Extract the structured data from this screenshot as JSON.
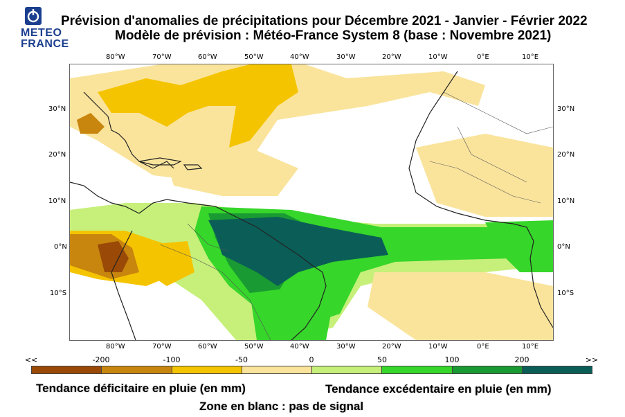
{
  "logo": {
    "line1": "METEO",
    "line2": "FRANCE"
  },
  "title": {
    "line1": "Prévision d'anomalies de précipitations pour Décembre 2021 - Janvier - Février 2022",
    "line2": "Modèle de prévision : Météo-France System 8   (base : Novembre 2021)"
  },
  "map": {
    "lon_labels": [
      "80°W",
      "70°W",
      "60°W",
      "50°W",
      "40°W",
      "30°W",
      "20°W",
      "10°W",
      "0°E",
      "10°E"
    ],
    "lat_labels": [
      "30°N",
      "20°N",
      "10°N",
      "0°N",
      "10°S"
    ]
  },
  "colorbar": {
    "labels": [
      "<<",
      "-200",
      "-100",
      "-50",
      "0",
      "50",
      "100",
      "200",
      ">>"
    ],
    "colors": [
      "#9a4a06",
      "#c8860e",
      "#f5c400",
      "#fae49c",
      "#c6f07a",
      "#36d62a",
      "#1a9a32",
      "#0b5e57"
    ]
  },
  "legend": {
    "deficit": "Tendance déficitaire en pluie (en mm)",
    "excess": "Tendance excédentaire en pluie (en mm)",
    "blank": "Zone en blanc : pas de signal"
  },
  "icons": [
    "meteo-france-logo-icon"
  ]
}
